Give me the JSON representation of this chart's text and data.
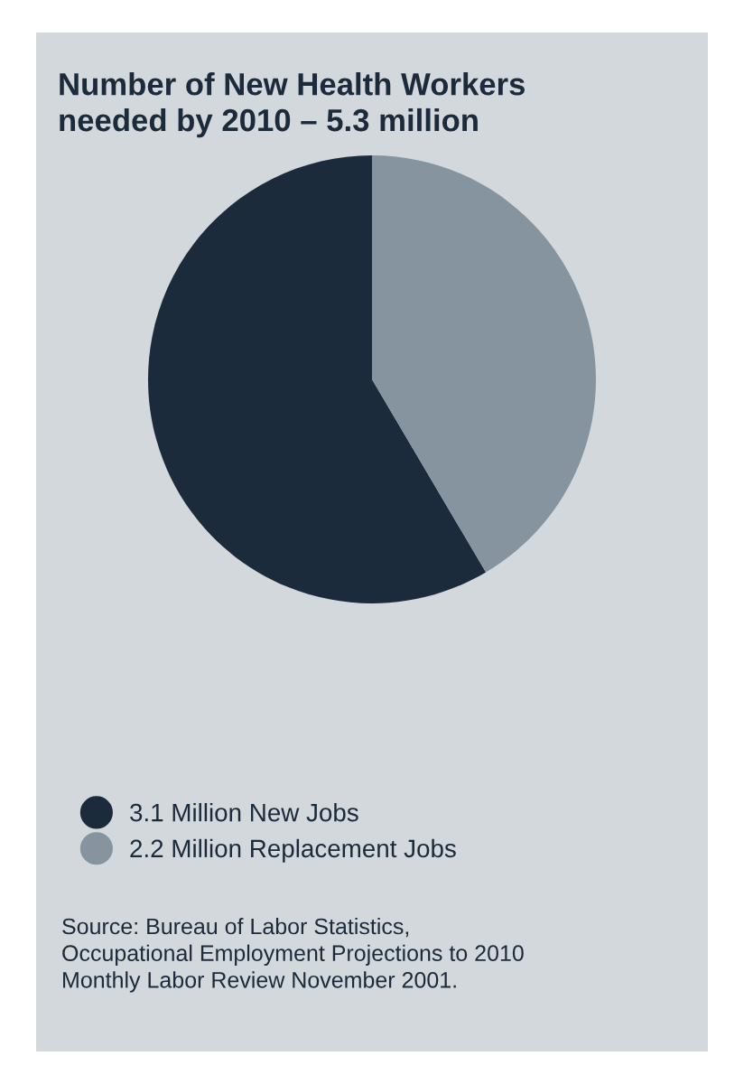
{
  "chart_data": {
    "type": "pie",
    "title": "Number of New Health Workers\nneeded by 2010 – 5.3 million",
    "categories": [
      "3.1 Million New Jobs",
      "2.2 Million Replacement Jobs"
    ],
    "values": [
      3.1,
      2.2
    ],
    "colors": [
      "#1c2b3b",
      "#85949f"
    ],
    "legend": "bottom left",
    "annotations": [
      "Source: Bureau of Labor Statistics,\nOccupational Employment Projections to 2010\nMonthly Labor Review November 2001."
    ]
  }
}
